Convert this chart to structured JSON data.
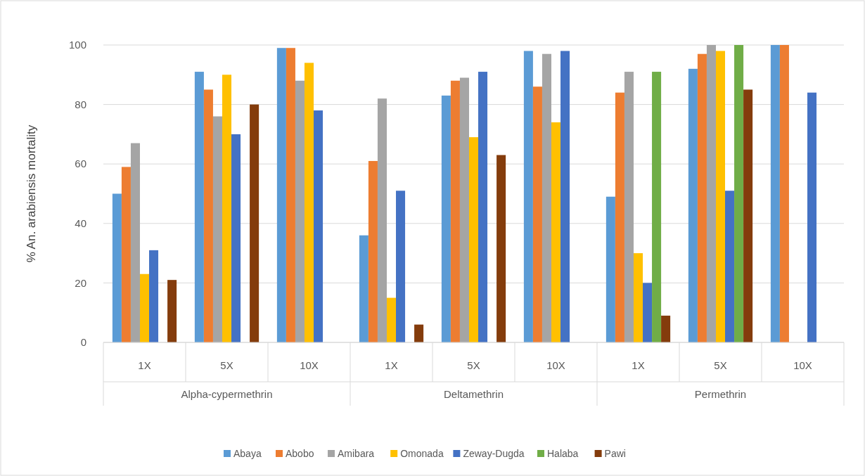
{
  "chart_data": {
    "type": "bar",
    "ylabel": "% An. arabiensis mortality",
    "categories": [
      "1X",
      "5X",
      "10X",
      "1X",
      "5X",
      "10X",
      "1X",
      "5X",
      "10X"
    ],
    "annotations": [
      "Alpha-cypermethrin",
      "Deltamethrin",
      "Permethrin"
    ],
    "series": [
      {
        "name": "Abaya",
        "color": "#5b9bd5",
        "values": [
          50,
          91,
          99,
          36,
          83,
          98,
          49,
          92,
          100
        ]
      },
      {
        "name": "Abobo",
        "color": "#ed7d31",
        "values": [
          59,
          85,
          99,
          61,
          88,
          86,
          84,
          97,
          100
        ]
      },
      {
        "name": "Amibara",
        "color": "#a5a5a5",
        "values": [
          67,
          76,
          88,
          82,
          89,
          97,
          91,
          100,
          null
        ]
      },
      {
        "name": "Omonada",
        "color": "#ffc000",
        "values": [
          23,
          90,
          94,
          15,
          69,
          74,
          30,
          98,
          null
        ]
      },
      {
        "name": "Zeway-Dugda",
        "color": "#4472c4",
        "values": [
          31,
          70,
          78,
          51,
          91,
          98,
          20,
          51,
          84
        ]
      },
      {
        "name": "Halaba",
        "color": "#70ad47",
        "values": [
          null,
          null,
          null,
          null,
          null,
          null,
          91,
          100,
          null
        ]
      },
      {
        "name": "Pawi",
        "color": "#843c0c",
        "values": [
          21,
          80,
          null,
          6,
          63,
          null,
          9,
          85,
          null
        ]
      }
    ],
    "ylim": [
      0,
      100
    ],
    "yticks": [
      0,
      20,
      40,
      60,
      80,
      100
    ],
    "grid": "y",
    "legend": "bottom"
  }
}
